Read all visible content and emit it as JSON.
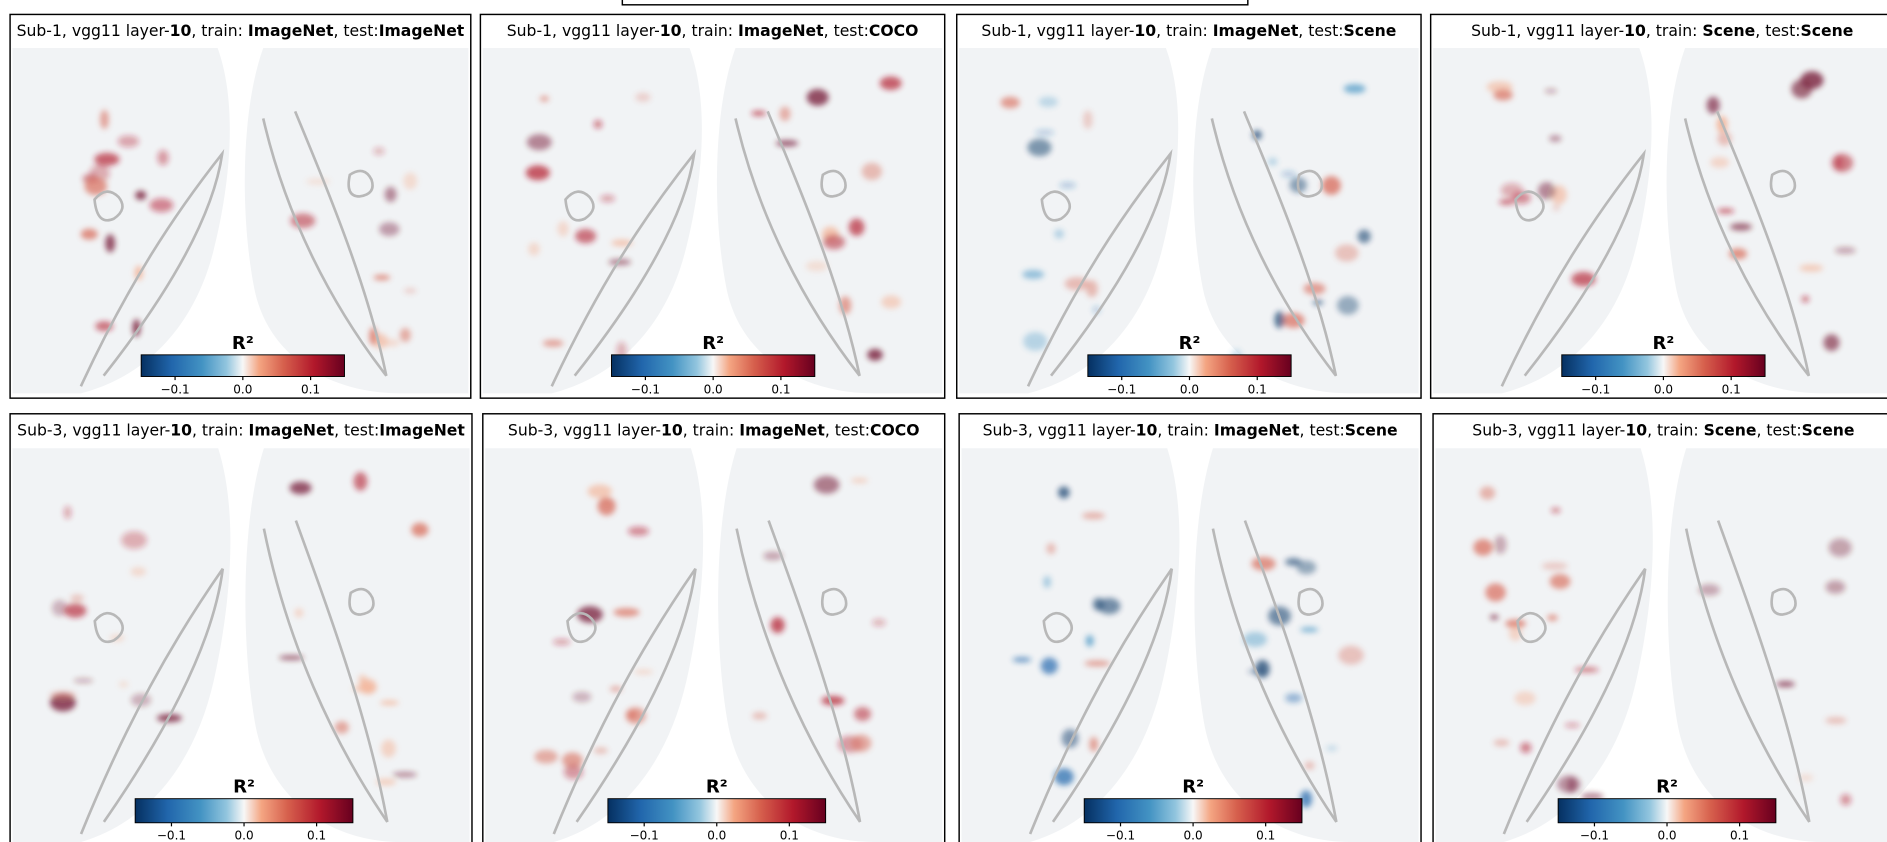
{
  "colorbar": {
    "label": "R²",
    "lim": [
      -0.15,
      0.15
    ],
    "ticks": [
      {
        "value": -0.1,
        "label": "−0.1"
      },
      {
        "value": 0,
        "label": "0.0"
      },
      0.1
    ]
  },
  "panels": [
    {
      "title": [
        {
          "text": "Sub-1, vgg11 layer-"
        },
        {
          "text": "10",
          "bold": true
        },
        {
          "text": ", train: "
        },
        {
          "text": "ImageNet",
          "bold": true
        },
        {
          "text": ", test:"
        },
        {
          "text": "ImageNet",
          "bold": true
        }
      ]
    },
    {
      "title": [
        {
          "text": "Sub-1, vgg11 layer-"
        },
        {
          "text": "10",
          "bold": true
        },
        {
          "text": ", train: "
        },
        {
          "text": "ImageNet",
          "bold": true
        },
        {
          "text": ", test:"
        },
        {
          "text": "COCO",
          "bold": true
        }
      ]
    },
    {
      "title": [
        {
          "text": "Sub-1, vgg11 layer-"
        },
        {
          "text": "10",
          "bold": true
        },
        {
          "text": ", train: "
        },
        {
          "text": "ImageNet",
          "bold": true
        },
        {
          "text": ", test:"
        },
        {
          "text": "Scene",
          "bold": true
        }
      ]
    },
    {
      "title": [
        {
          "text": "Sub-1, vgg11 layer-"
        },
        {
          "text": "10",
          "bold": true
        },
        {
          "text": ", train: "
        },
        {
          "text": "Scene",
          "bold": true
        },
        {
          "text": ", test:"
        },
        {
          "text": "Scene",
          "bold": true
        }
      ]
    },
    {
      "title": [
        {
          "text": "Sub-3, vgg11 layer-"
        },
        {
          "text": "10",
          "bold": true
        },
        {
          "text": ", train: "
        },
        {
          "text": "ImageNet",
          "bold": true
        },
        {
          "text": ", test:"
        },
        {
          "text": "ImageNet",
          "bold": true
        }
      ]
    },
    {
      "title": [
        {
          "text": "Sub-3, vgg11 layer-"
        },
        {
          "text": "10",
          "bold": true
        },
        {
          "text": ", train: "
        },
        {
          "text": "ImageNet",
          "bold": true
        },
        {
          "text": ", test:"
        },
        {
          "text": "COCO",
          "bold": true
        }
      ]
    },
    {
      "title": [
        {
          "text": "Sub-3, vgg11 layer-"
        },
        {
          "text": "10",
          "bold": true
        },
        {
          "text": ", train: "
        },
        {
          "text": "ImageNet",
          "bold": true
        },
        {
          "text": ", test:"
        },
        {
          "text": "Scene",
          "bold": true
        }
      ]
    },
    {
      "title": [
        {
          "text": "Sub-3, vgg11 layer-"
        },
        {
          "text": "10",
          "bold": true
        },
        {
          "text": ", train: "
        },
        {
          "text": "Scene",
          "bold": true
        },
        {
          "text": ", test:"
        },
        {
          "text": "Scene",
          "bold": true
        }
      ]
    }
  ]
}
